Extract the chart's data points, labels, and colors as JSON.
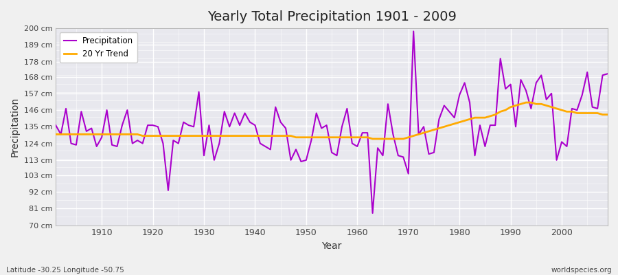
{
  "title": "Yearly Total Precipitation 1901 - 2009",
  "xlabel": "Year",
  "ylabel": "Precipitation",
  "lat_lon_label": "Latitude -30.25 Longitude -50.75",
  "source_label": "worldspecies.org",
  "precip_color": "#aa00cc",
  "trend_color": "#ffaa00",
  "fig_bg_color": "#f0f0f0",
  "plot_bg_color": "#e8e8ee",
  "ylim": [
    70,
    200
  ],
  "ytick_values": [
    70,
    81,
    92,
    103,
    113,
    124,
    135,
    146,
    157,
    168,
    178,
    189,
    200
  ],
  "xtick_values": [
    1910,
    1920,
    1930,
    1940,
    1950,
    1960,
    1970,
    1980,
    1990,
    2000
  ],
  "years": [
    1901,
    1902,
    1903,
    1904,
    1905,
    1906,
    1907,
    1908,
    1909,
    1910,
    1911,
    1912,
    1913,
    1914,
    1915,
    1916,
    1917,
    1918,
    1919,
    1920,
    1921,
    1922,
    1923,
    1924,
    1925,
    1926,
    1927,
    1928,
    1929,
    1930,
    1931,
    1932,
    1933,
    1934,
    1935,
    1936,
    1937,
    1938,
    1939,
    1940,
    1941,
    1942,
    1943,
    1944,
    1945,
    1946,
    1947,
    1948,
    1949,
    1950,
    1951,
    1952,
    1953,
    1954,
    1955,
    1956,
    1957,
    1958,
    1959,
    1960,
    1961,
    1962,
    1963,
    1964,
    1965,
    1966,
    1967,
    1968,
    1969,
    1970,
    1971,
    1972,
    1973,
    1974,
    1975,
    1976,
    1977,
    1978,
    1979,
    1980,
    1981,
    1982,
    1983,
    1984,
    1985,
    1986,
    1987,
    1988,
    1989,
    1990,
    1991,
    1992,
    1993,
    1994,
    1995,
    1996,
    1997,
    1998,
    1999,
    2000,
    2001,
    2002,
    2003,
    2004,
    2005,
    2006,
    2007,
    2008,
    2009
  ],
  "precip": [
    136,
    130,
    147,
    124,
    123,
    145,
    132,
    134,
    122,
    128,
    146,
    123,
    122,
    136,
    146,
    124,
    126,
    124,
    136,
    136,
    135,
    124,
    93,
    126,
    124,
    138,
    136,
    135,
    158,
    116,
    136,
    113,
    124,
    145,
    135,
    144,
    136,
    144,
    138,
    136,
    124,
    122,
    120,
    148,
    138,
    134,
    113,
    120,
    112,
    113,
    126,
    144,
    134,
    136,
    118,
    116,
    135,
    147,
    124,
    122,
    131,
    131,
    78,
    121,
    116,
    150,
    130,
    116,
    115,
    104,
    198,
    130,
    135,
    117,
    118,
    140,
    149,
    145,
    141,
    156,
    164,
    151,
    116,
    136,
    122,
    136,
    136,
    180,
    160,
    163,
    135,
    166,
    159,
    147,
    164,
    169,
    153,
    157,
    113,
    125,
    122,
    147,
    146,
    156,
    171,
    148,
    147,
    169,
    170
  ],
  "trend": [
    130,
    130,
    130,
    130,
    130,
    130,
    130,
    130,
    130,
    130,
    130,
    130,
    130,
    130,
    130,
    130,
    130,
    129,
    129,
    129,
    129,
    129,
    129,
    129,
    129,
    129,
    129,
    129,
    129,
    129,
    129,
    129,
    129,
    129,
    129,
    129,
    129,
    129,
    129,
    129,
    129,
    129,
    129,
    129,
    129,
    129,
    129,
    128,
    128,
    128,
    128,
    128,
    128,
    128,
    128,
    128,
    128,
    128,
    128,
    128,
    128,
    128,
    127,
    127,
    127,
    127,
    127,
    127,
    127,
    128,
    129,
    130,
    131,
    132,
    133,
    134,
    135,
    136,
    137,
    138,
    139,
    140,
    141,
    141,
    141,
    142,
    143,
    145,
    146,
    148,
    149,
    150,
    151,
    151,
    150,
    150,
    149,
    148,
    147,
    146,
    145,
    145,
    144,
    144,
    144,
    144,
    144,
    143,
    143
  ]
}
